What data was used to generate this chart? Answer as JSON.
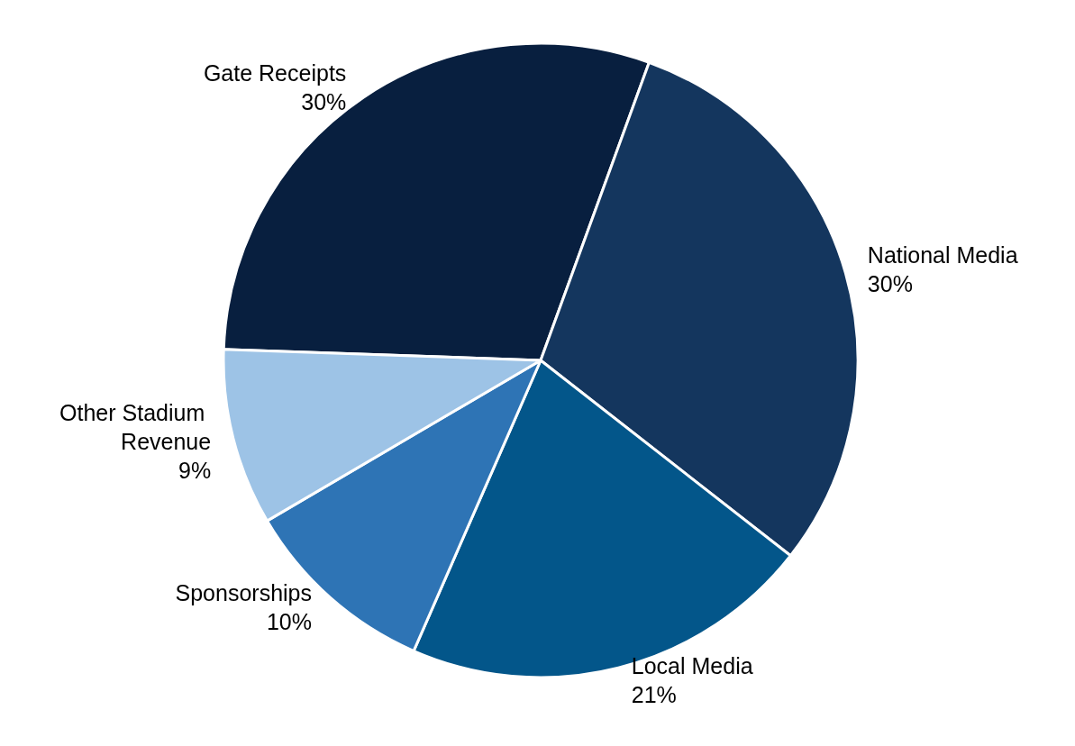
{
  "chart_data": {
    "type": "pie",
    "categories": [
      "Gate Receipts",
      "National Media",
      "Local Media",
      "Sponsorships",
      "Other Stadium Revenue"
    ],
    "values": [
      30,
      30,
      21,
      10,
      9
    ],
    "colors": [
      "#081f3f",
      "#14365e",
      "#03568a",
      "#2e74b5",
      "#9dc3e6"
    ],
    "value_labels": [
      "30%",
      "30%",
      "21%",
      "10%",
      "9%"
    ],
    "legend": false
  }
}
